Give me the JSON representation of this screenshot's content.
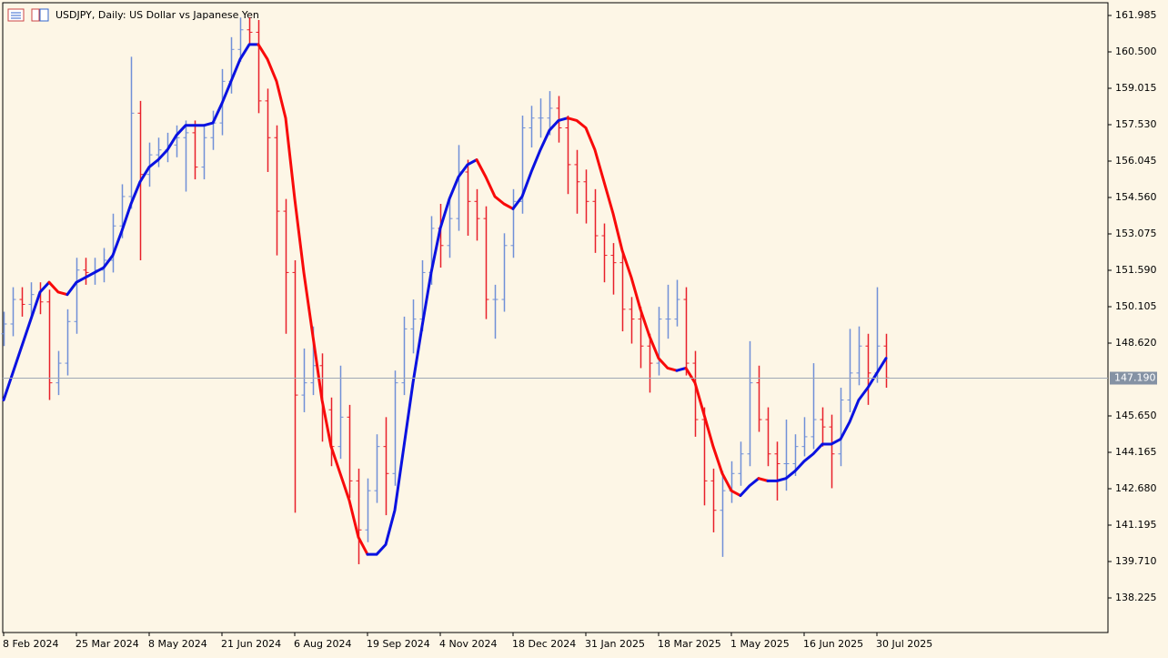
{
  "chart_data": {
    "type": "ohlc",
    "title": "USDJPY, Daily:  US Dollar vs Japanese Yen",
    "categories": [
      "8 Feb 2024",
      null,
      null,
      null,
      null,
      null,
      null,
      null,
      "25 Mar 2024",
      null,
      null,
      null,
      null,
      null,
      null,
      null,
      "8 May 2024",
      null,
      null,
      null,
      null,
      null,
      null,
      null,
      "21 Jun 2024",
      null,
      null,
      null,
      null,
      null,
      null,
      null,
      "6 Aug 2024",
      null,
      null,
      null,
      null,
      null,
      null,
      null,
      "19 Sep 2024",
      null,
      null,
      null,
      null,
      null,
      null,
      null,
      "4 Nov 2024",
      null,
      null,
      null,
      null,
      null,
      null,
      null,
      "18 Dec 2024",
      null,
      null,
      null,
      null,
      null,
      null,
      null,
      "31 Jan 2025",
      null,
      null,
      null,
      null,
      null,
      null,
      null,
      "18 Mar 2025",
      null,
      null,
      null,
      null,
      null,
      null,
      null,
      "1 May 2025",
      null,
      null,
      null,
      null,
      null,
      null,
      null,
      "16 Jun 2025",
      null,
      null,
      null,
      null,
      null,
      null,
      null,
      "30 Jul 2025",
      null
    ],
    "open": [
      149.0,
      149.4,
      150.4,
      150.2,
      150.6,
      150.3,
      147.0,
      147.8,
      149.5,
      151.6,
      151.5,
      151.6,
      152.0,
      153.4,
      154.6,
      158.0,
      155.5,
      156.3,
      156.5,
      156.7,
      157.0,
      157.2,
      155.8,
      157.0,
      157.6,
      159.3,
      160.6,
      161.4,
      161.3,
      158.5,
      157.0,
      154.0,
      151.5,
      146.5,
      147.0,
      147.7,
      145.9,
      144.4,
      145.6,
      143.0,
      141.0,
      142.6,
      144.4,
      143.3,
      147.0,
      149.2,
      149.6,
      151.5,
      153.3,
      152.6,
      153.7,
      155.6,
      154.4,
      153.7,
      150.4,
      150.4,
      152.6,
      154.4,
      157.4,
      157.8,
      157.8,
      158.2,
      157.4,
      155.9,
      155.2,
      154.4,
      153.0,
      152.2,
      151.9,
      150.0,
      149.6,
      148.5,
      147.8,
      149.6,
      149.6,
      150.4,
      147.8,
      145.5,
      143.0,
      141.8,
      142.6,
      143.3,
      144.1,
      147.0,
      145.5,
      144.1,
      143.7,
      143.7,
      144.4,
      144.8,
      145.5,
      145.2,
      144.1,
      146.3,
      147.4,
      148.5,
      147.4,
      148.5
    ],
    "high": [
      149.9,
      150.9,
      150.9,
      151.1,
      151.1,
      150.8,
      148.3,
      150.0,
      152.1,
      152.1,
      152.1,
      152.5,
      153.9,
      155.1,
      160.3,
      158.5,
      156.8,
      157.0,
      157.2,
      157.5,
      157.7,
      157.7,
      157.5,
      158.1,
      159.8,
      161.1,
      161.9,
      161.9,
      161.8,
      159.0,
      157.5,
      154.5,
      152.0,
      148.4,
      149.3,
      148.2,
      146.4,
      147.7,
      146.1,
      143.5,
      143.1,
      144.9,
      145.6,
      147.5,
      149.7,
      150.4,
      152.0,
      153.8,
      154.3,
      154.6,
      156.7,
      156.1,
      154.9,
      154.2,
      151.0,
      153.1,
      154.9,
      157.9,
      158.3,
      158.6,
      158.9,
      158.7,
      157.9,
      156.5,
      155.7,
      154.9,
      153.5,
      152.7,
      152.4,
      150.5,
      150.1,
      149.0,
      150.1,
      151.0,
      151.2,
      150.9,
      148.3,
      146.0,
      143.5,
      143.4,
      143.8,
      144.6,
      148.7,
      147.7,
      146.0,
      144.6,
      145.5,
      144.9,
      145.6,
      147.8,
      146.0,
      145.7,
      146.8,
      149.2,
      149.3,
      149.0,
      150.9,
      149.0
    ],
    "low": [
      148.5,
      148.9,
      149.7,
      149.7,
      149.8,
      146.3,
      146.5,
      147.3,
      149.0,
      151.0,
      151.0,
      151.1,
      151.5,
      152.9,
      154.1,
      152.0,
      155.0,
      155.8,
      156.0,
      156.2,
      154.8,
      155.3,
      155.3,
      156.5,
      157.1,
      158.8,
      160.1,
      160.8,
      158.0,
      155.6,
      152.2,
      149.0,
      141.7,
      145.8,
      146.5,
      144.6,
      143.6,
      143.9,
      142.3,
      139.6,
      140.5,
      142.1,
      141.6,
      142.8,
      146.5,
      148.2,
      149.1,
      151.0,
      151.7,
      152.1,
      153.2,
      153.0,
      152.8,
      149.6,
      148.8,
      149.9,
      152.1,
      153.9,
      156.6,
      157.0,
      157.1,
      156.8,
      154.7,
      153.9,
      153.5,
      152.3,
      151.1,
      150.6,
      149.1,
      148.6,
      147.6,
      146.6,
      147.3,
      148.8,
      149.3,
      147.3,
      144.8,
      142.0,
      140.9,
      139.9,
      142.1,
      142.8,
      143.6,
      145.0,
      143.6,
      142.2,
      142.6,
      143.2,
      144.0,
      144.3,
      144.4,
      142.7,
      143.6,
      145.8,
      146.9,
      146.1,
      147.0,
      146.8
    ],
    "close": [
      149.4,
      150.4,
      150.2,
      150.6,
      150.3,
      147.0,
      147.8,
      149.5,
      151.6,
      151.5,
      151.6,
      152.0,
      153.4,
      154.6,
      158.0,
      155.5,
      156.3,
      156.5,
      156.7,
      157.0,
      157.2,
      155.8,
      157.0,
      157.6,
      159.3,
      160.6,
      161.4,
      161.3,
      158.5,
      157.0,
      154.0,
      151.5,
      146.5,
      147.0,
      147.7,
      145.9,
      144.4,
      145.6,
      143.0,
      141.0,
      142.6,
      144.4,
      143.3,
      147.0,
      149.2,
      149.6,
      151.5,
      153.3,
      152.6,
      153.7,
      155.6,
      154.4,
      153.7,
      150.4,
      150.4,
      152.6,
      154.4,
      157.4,
      157.8,
      157.8,
      158.2,
      157.4,
      155.9,
      155.2,
      154.4,
      153.0,
      152.2,
      151.9,
      150.0,
      149.6,
      148.5,
      147.8,
      149.6,
      149.6,
      150.4,
      147.8,
      145.5,
      143.0,
      141.8,
      142.6,
      143.3,
      144.1,
      147.0,
      145.5,
      144.1,
      143.7,
      143.7,
      144.4,
      144.8,
      145.5,
      145.2,
      144.1,
      146.3,
      147.4,
      148.5,
      147.4,
      148.5,
      147.2
    ],
    "ma": [
      146.3,
      147.4,
      148.5,
      149.6,
      150.7,
      151.1,
      150.7,
      150.6,
      151.1,
      151.3,
      151.5,
      151.7,
      152.2,
      153.2,
      154.3,
      155.2,
      155.8,
      156.1,
      156.5,
      157.1,
      157.5,
      157.5,
      157.5,
      157.6,
      158.4,
      159.3,
      160.2,
      160.8,
      160.8,
      160.2,
      159.3,
      157.8,
      154.5,
      151.5,
      148.9,
      146.3,
      144.4,
      143.3,
      142.2,
      140.7,
      140.0,
      140.0,
      140.4,
      141.8,
      144.4,
      147.0,
      149.3,
      151.5,
      153.3,
      154.5,
      155.4,
      155.9,
      156.1,
      155.4,
      154.6,
      154.3,
      154.1,
      154.6,
      155.6,
      156.5,
      157.3,
      157.7,
      157.8,
      157.7,
      157.4,
      156.5,
      155.2,
      153.9,
      152.4,
      151.3,
      150.0,
      148.9,
      148.0,
      147.6,
      147.5,
      147.6,
      147.0,
      145.7,
      144.4,
      143.3,
      142.6,
      142.4,
      142.8,
      143.1,
      143.0,
      143.0,
      143.1,
      143.4,
      143.8,
      144.1,
      144.5,
      144.5,
      144.7,
      145.4,
      146.3,
      146.8,
      147.4,
      148.0
    ],
    "up_color": "#7090d8",
    "down_color": "#e8202a",
    "ma_up_color": "#0a12e0",
    "ma_down_color": "#f80a0a",
    "ylim": [
      136.814,
      162.616
    ],
    "yticks": [
      161.985,
      {
        "value": 160.5,
        "label": "160.500"
      },
      159.015,
      {
        "value": 157.53,
        "label": "157.530"
      },
      156.045,
      {
        "value": 154.56,
        "label": "154.560"
      },
      153.075,
      {
        "value": 151.59,
        "label": "151.590"
      },
      150.105,
      {
        "value": 148.62,
        "label": "148.620"
      },
      {
        "value": 145.65,
        "label": "145.650"
      },
      144.165,
      {
        "value": 142.68,
        "label": "142.680"
      },
      141.195,
      {
        "value": 139.71,
        "label": "139.710"
      },
      138.225
    ],
    "current_price": {
      "value": 147.19,
      "label": "147.190"
    },
    "grid": false
  }
}
